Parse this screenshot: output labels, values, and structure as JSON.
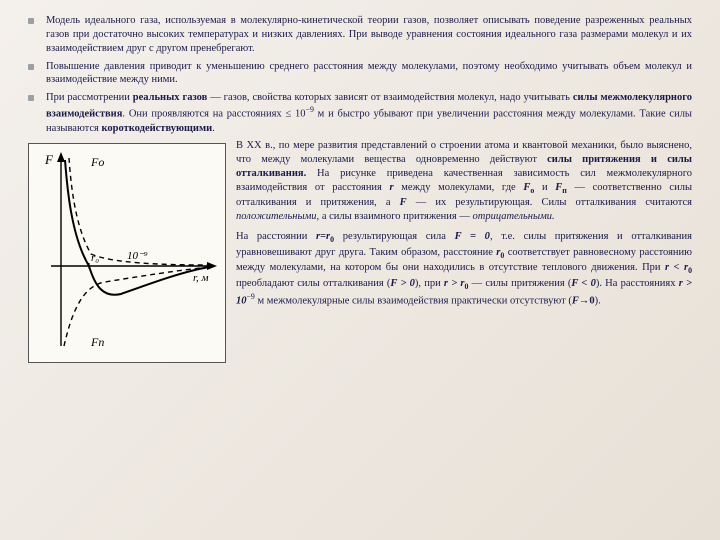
{
  "bullets": [
    {
      "html": "Модель идеального газа, используемая в молекулярно-кинетической теории газов, позволяет описывать поведение разреженных реальных газов при достаточно высоких температурах и низких давлениях. При выводе уравнения состояния идеального газа размерами молекул и их взаимодействием друг с другом пренебрегают."
    },
    {
      "html": "Повышение давления приводит к уменьшению среднего расстояния между молекулами, поэтому необходимо учитывать объем молекул и взаимодействие между ними."
    },
    {
      "html": "При рассмотрении <span class='bold'>реальных газов</span> — газов, свойства которых зависят от взаимодействия молекул, надо учитывать <span class='bold'>силы межмолекулярного взаимодействия</span>. Они проявляются на расстояниях ≤ 10<sup>−9</sup> м и быстро убывают при увеличении расстояния между молекулами. Такие силы называются <span class='bold'>короткодействующими</span>."
    }
  ],
  "right_paragraphs": [
    {
      "html": "В XX в., по мере развития представлений о строении атома и квантовой механики, было выяснено, что между молекулами вещества одновременно действуют <span class='bold'>силы притяжения и силы отталкивания.</span> На рисунке приведена качественная зависимость сил межмолекулярного взаимодействия от расстояния <span class='bolditalic'>r</span> между молекулами, где <span class='bolditalic'>F</span><span class='sub bold'>о</span> и <span class='bolditalic'>F</span><span class='sub bold'>п</span> — соответственно силы отталкивания и притяжения, а <span class='bolditalic'>F</span> — их результирующая. Силы отталкивания считаются <span class='ital'>положительными,</span> а силы взаимного притяжения — <span class='ital'>отрицательными.</span>"
    },
    {
      "html": "На расстоянии <span class='bolditalic'>r=r</span><span class='sub bold'>0</span> результирующая сила <span class='bolditalic'>F = 0</span>, т.е. силы притяжения и отталкивания уравновешивают друг друга. Таким образом, расстояние <span class='bolditalic'>r</span><span class='sub bold'>0</span> соответствует равновесному расстоянию между молекулами, на котором бы они находились в отсутствие теплового движения. При <span class='bolditalic'>r &lt; r</span><span class='sub bold'>0</span> преобладают силы отталкивания (<span class='bolditalic'>F &gt; 0</span>), при <span class='bolditalic'>r &gt; r</span><span class='sub bold'>0</span> — силы притяжения (<span class='bolditalic'>F &lt; 0</span>). На расстояниях <span class='bolditalic'>r &gt; 10</span><sup>−9</sup> м межмолекулярные силы взаимодействия практически отсутствуют (<span class='bolditalic'>F</span>→<span class='bold'>0</span>)."
    }
  ],
  "figure": {
    "y_label": "F",
    "x_label": "r, м",
    "curve_repulsion_label": "Fо",
    "curve_attraction_label": "Fп",
    "r0_label": "r₀",
    "ten_label": "10⁻⁹",
    "axis_color": "#000000",
    "curve_color": "#000000",
    "dash_color": "#000000",
    "background": "#fcfaf5"
  }
}
